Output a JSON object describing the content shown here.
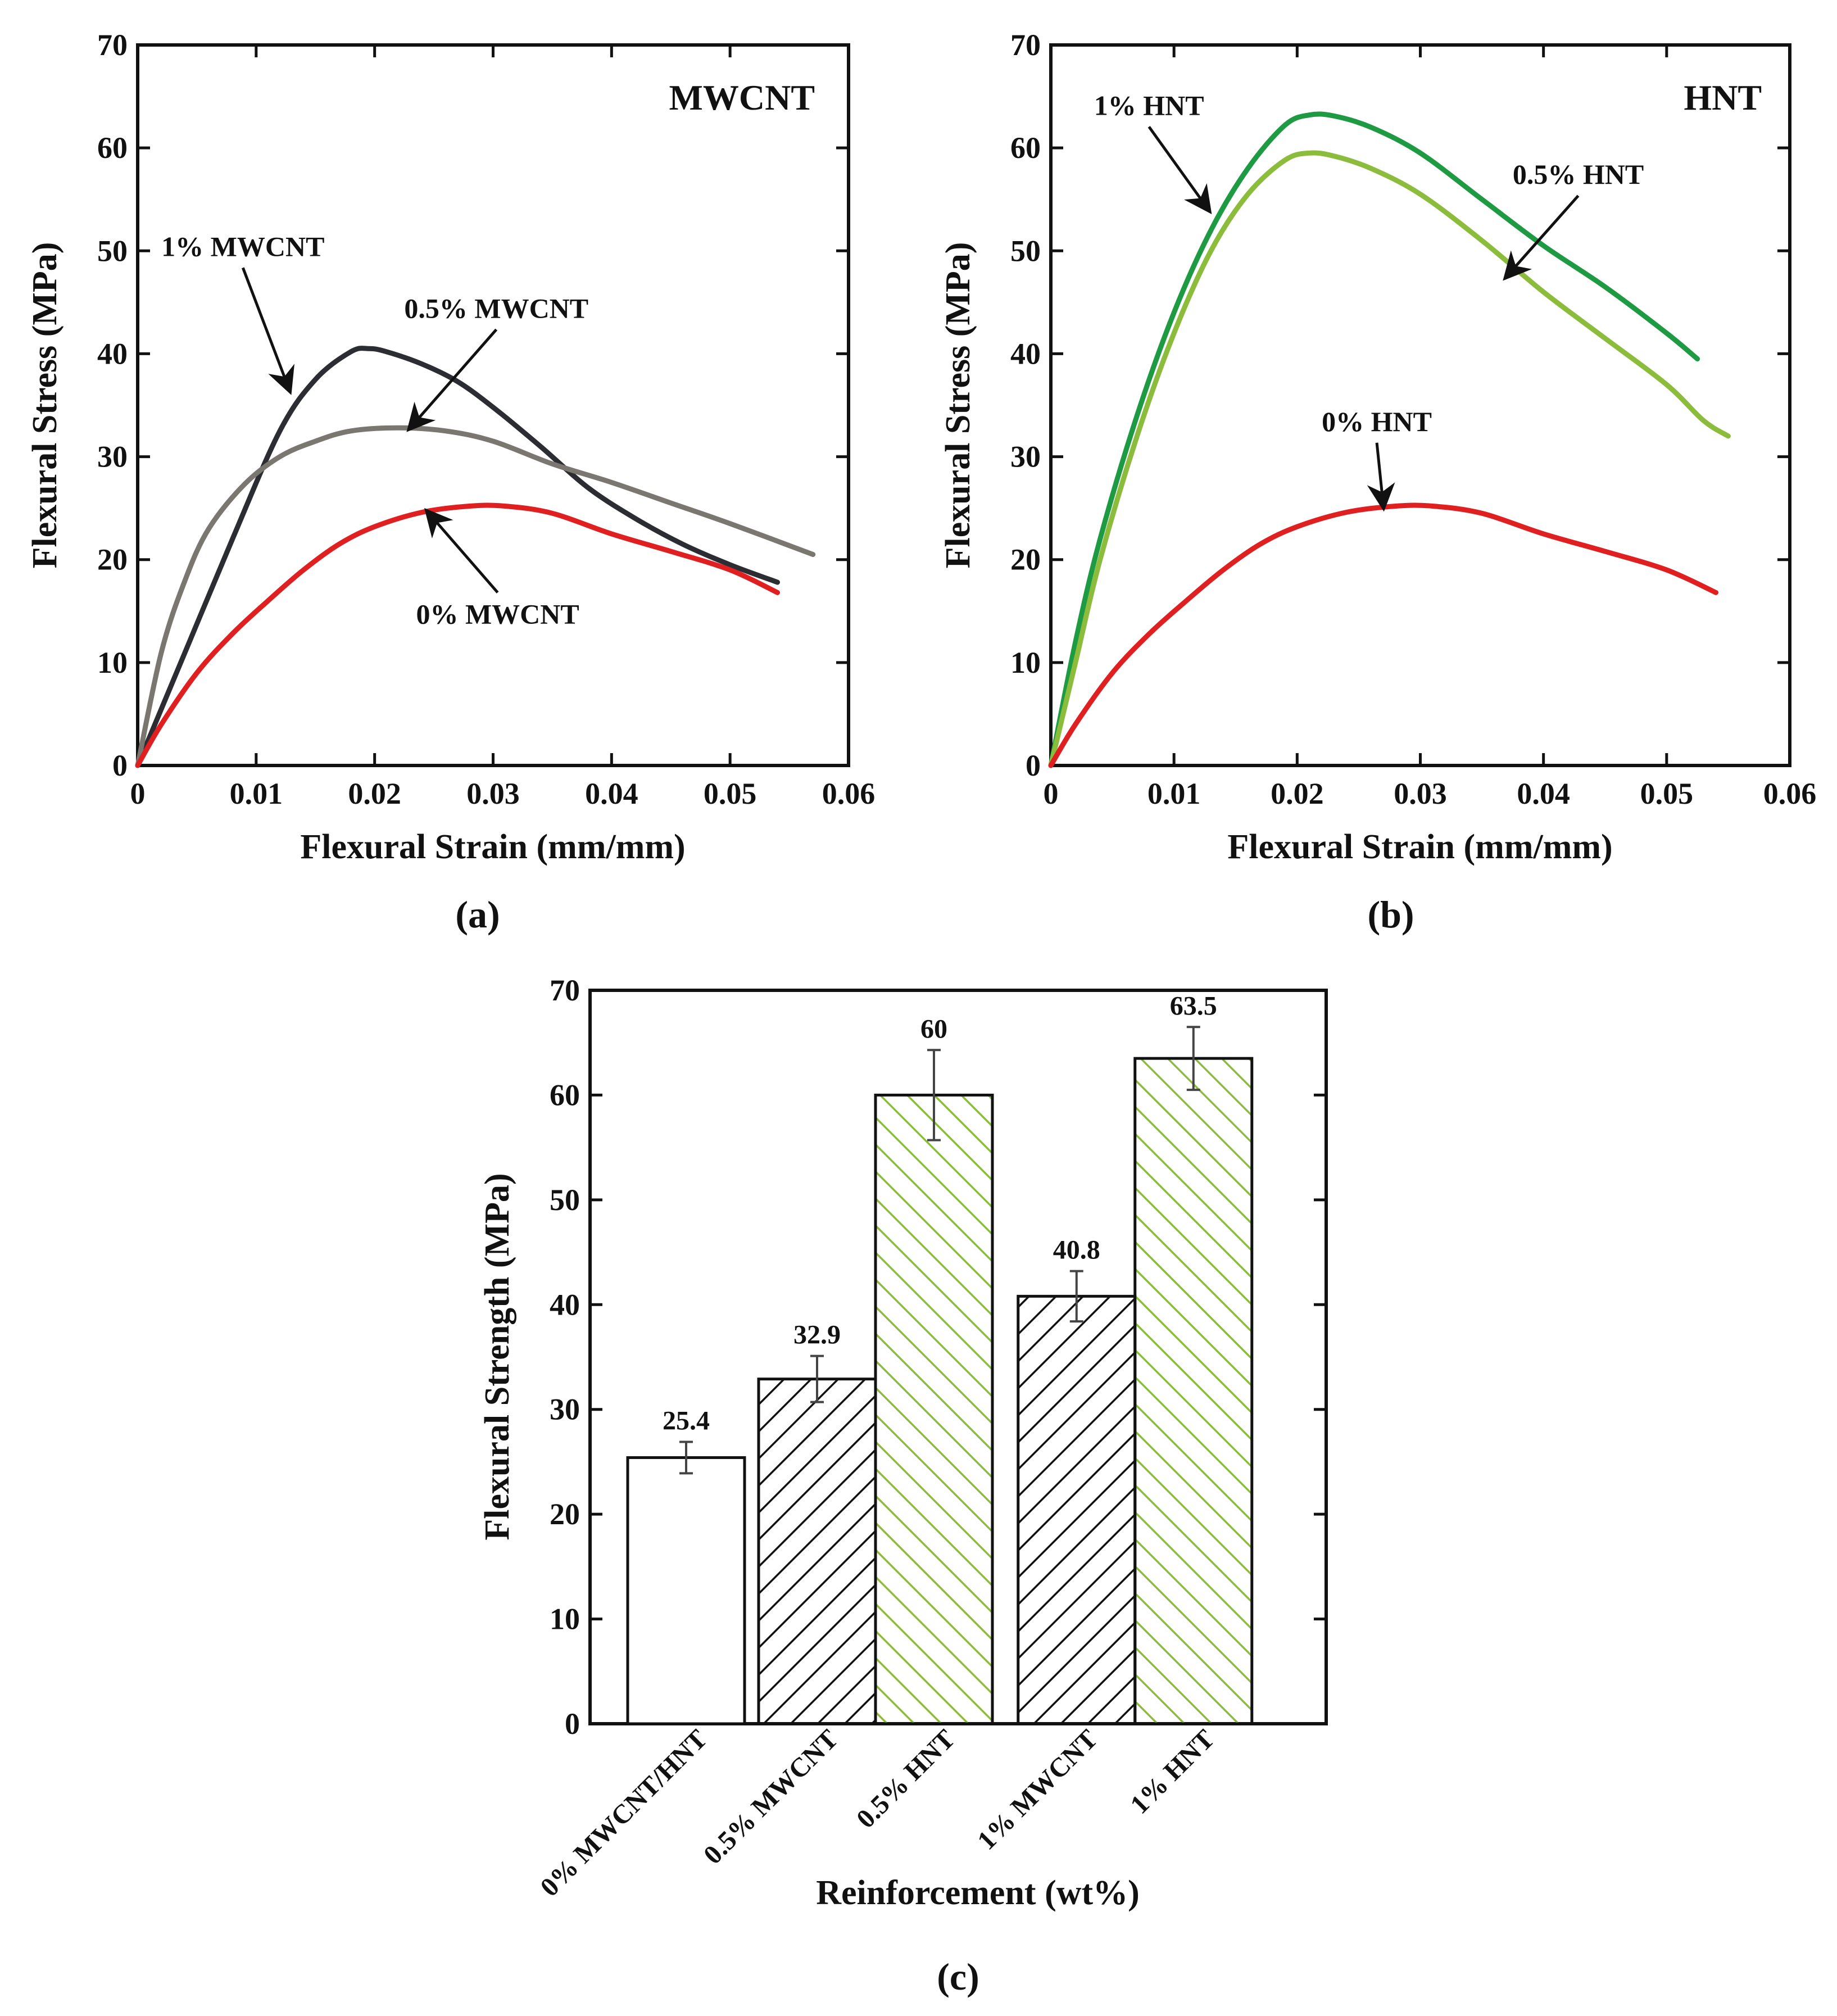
{
  "chart_data": [
    {
      "id": "a",
      "type": "line",
      "panel_label": "(a)",
      "title": "MWCNT",
      "xlabel": "Flexural Strain (mm/mm)",
      "ylabel": "Flexural Stress (MPa)",
      "xlim": [
        0,
        0.06
      ],
      "ylim": [
        0,
        70
      ],
      "xticks": [
        0,
        0.01,
        0.02,
        0.03,
        0.04,
        0.05,
        0.06
      ],
      "xtick_labels": [
        "0",
        "0.01",
        "0.02",
        "0.03",
        "0.04",
        "0.05",
        "0.06"
      ],
      "yticks": [
        0,
        10,
        20,
        30,
        40,
        50,
        60,
        70
      ],
      "ytick_labels": [
        "0",
        "10",
        "20",
        "30",
        "40",
        "50",
        "60",
        "70"
      ],
      "grid": false,
      "series": [
        {
          "name": "1% MWCNT",
          "color": "#2b2d33",
          "x": [
            0,
            0.004,
            0.008,
            0.012,
            0.015,
            0.018,
            0.0195,
            0.021,
            0.024,
            0.027,
            0.03,
            0.034,
            0.038,
            0.042,
            0.046,
            0.05,
            0.054
          ],
          "y": [
            0,
            11,
            22,
            32.5,
            37.5,
            40.2,
            40.5,
            40.2,
            39,
            37.3,
            34.8,
            31,
            27,
            24,
            21.5,
            19.5,
            17.8
          ]
        },
        {
          "name": "0.5% MWCNT",
          "color": "#7a7670",
          "x": [
            0,
            0.002,
            0.004,
            0.006,
            0.009,
            0.012,
            0.015,
            0.018,
            0.022,
            0.026,
            0.03,
            0.035,
            0.04,
            0.045,
            0.05,
            0.057
          ],
          "y": [
            0,
            11,
            18,
            23,
            27.3,
            30,
            31.5,
            32.5,
            32.8,
            32.5,
            31.5,
            29.3,
            27.5,
            25.5,
            23.5,
            20.5
          ]
        },
        {
          "name": "0% MWCNT",
          "color": "#e02020",
          "x": [
            0,
            0.002,
            0.005,
            0.008,
            0.011,
            0.014,
            0.017,
            0.02,
            0.024,
            0.028,
            0.031,
            0.035,
            0.04,
            0.045,
            0.05,
            0.054
          ],
          "y": [
            0,
            4,
            9,
            12.8,
            16,
            19,
            21.5,
            23.2,
            24.6,
            25.2,
            25.2,
            24.5,
            22.5,
            20.8,
            19,
            16.8
          ]
        }
      ],
      "annotations": [
        {
          "text": "1% MWCNT",
          "x": 0.002,
          "y": 49.5,
          "arrow_to": [
            0.0128,
            36.5
          ]
        },
        {
          "text": "0.5% MWCNT",
          "x": 0.0225,
          "y": 43.5,
          "arrow_to": [
            0.023,
            32.8
          ]
        },
        {
          "text": "0% MWCNT",
          "x": 0.0235,
          "y": 13.8,
          "arrow_to": [
            0.0245,
            24.6
          ]
        }
      ]
    },
    {
      "id": "b",
      "type": "line",
      "panel_label": "(b)",
      "title": "HNT",
      "xlabel": "Flexural Strain (mm/mm)",
      "ylabel": "Flexural Stress (MPa)",
      "xlim": [
        0,
        0.06
      ],
      "ylim": [
        0,
        70
      ],
      "xticks": [
        0,
        0.01,
        0.02,
        0.03,
        0.04,
        0.05,
        0.06
      ],
      "xtick_labels": [
        "0",
        "0.01",
        "0.02",
        "0.03",
        "0.04",
        "0.05",
        "0.06"
      ],
      "yticks": [
        0,
        10,
        20,
        30,
        40,
        50,
        60,
        70
      ],
      "ytick_labels": [
        "0",
        "10",
        "20",
        "30",
        "40",
        "50",
        "60",
        "70"
      ],
      "grid": false,
      "series": [
        {
          "name": "1% HNT",
          "color": "#1e9a42",
          "x": [
            0,
            0.002,
            0.004,
            0.007,
            0.01,
            0.013,
            0.016,
            0.019,
            0.021,
            0.023,
            0.026,
            0.03,
            0.035,
            0.04,
            0.045,
            0.05,
            0.0525
          ],
          "y": [
            0,
            12,
            22,
            34,
            44,
            52,
            58,
            62.2,
            63.2,
            63.1,
            62,
            59.5,
            55,
            50.5,
            46.5,
            42,
            39.5
          ]
        },
        {
          "name": "0.5% HNT",
          "color": "#8cbc3c",
          "x": [
            0,
            0.002,
            0.004,
            0.007,
            0.01,
            0.013,
            0.016,
            0.019,
            0.021,
            0.023,
            0.026,
            0.03,
            0.035,
            0.04,
            0.045,
            0.05,
            0.053,
            0.055
          ],
          "y": [
            0,
            10,
            20,
            32,
            42,
            50,
            55.5,
            58.8,
            59.5,
            59.2,
            58,
            55.5,
            51,
            46,
            41.5,
            37,
            33.5,
            32
          ]
        },
        {
          "name": "0% HNT",
          "color": "#e02020",
          "x": [
            0,
            0.002,
            0.005,
            0.008,
            0.011,
            0.014,
            0.017,
            0.02,
            0.024,
            0.028,
            0.031,
            0.035,
            0.04,
            0.045,
            0.05,
            0.054
          ],
          "y": [
            0,
            4,
            9,
            12.8,
            16,
            19,
            21.5,
            23.2,
            24.6,
            25.2,
            25.2,
            24.5,
            22.5,
            20.8,
            19,
            16.8
          ]
        }
      ],
      "annotations": [
        {
          "text": "1% HNT",
          "x": 0.0035,
          "y": 63.2,
          "arrow_to": [
            0.0128,
            54
          ]
        },
        {
          "text": "0.5% HNT",
          "x": 0.0375,
          "y": 56.5,
          "arrow_to": [
            0.037,
            47.5
          ]
        },
        {
          "text": "0% HNT",
          "x": 0.022,
          "y": 32.5,
          "arrow_to": [
            0.027,
            25.2
          ]
        }
      ]
    },
    {
      "id": "c",
      "type": "bar",
      "panel_label": "(c)",
      "xlabel": "Reinforcement (wt%)",
      "ylabel": "Flexural Strength (MPa)",
      "ylim": [
        0,
        70
      ],
      "yticks": [
        0,
        10,
        20,
        30,
        40,
        50,
        60,
        70
      ],
      "ytick_labels": [
        "0",
        "10",
        "20",
        "30",
        "40",
        "50",
        "60",
        "70"
      ],
      "categories": [
        "0% MWCNT/HNT",
        "0.5% MWCNT",
        "0.5% HNT",
        "1% MWCNT",
        "1% HNT"
      ],
      "values": [
        25.4,
        32.9,
        60,
        40.8,
        63.5
      ],
      "value_labels": [
        "25.4",
        "32.9",
        "60",
        "40.8",
        "63.5"
      ],
      "errors": [
        1.5,
        2.2,
        4.3,
        2.4,
        3.0
      ],
      "fills": [
        "none",
        "hatch-black",
        "hatch-green",
        "hatch-black",
        "hatch-green"
      ],
      "hatch_colors": {
        "black": "#111111",
        "green": "#8cbc3c"
      }
    }
  ]
}
